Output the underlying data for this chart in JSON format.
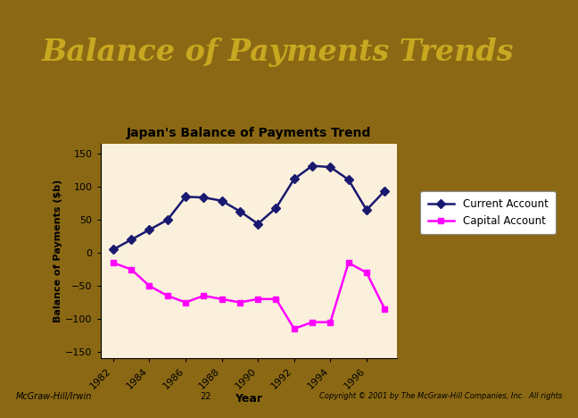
{
  "title": "Balance of Payments Trends",
  "chart_title": "Japan's Balance of Payments Trend",
  "xlabel": "Year",
  "ylabel": "Balance of Payments ($b)",
  "years": [
    1982,
    1983,
    1984,
    1985,
    1986,
    1987,
    1988,
    1989,
    1990,
    1991,
    1992,
    1993,
    1994,
    1995,
    1996,
    1997
  ],
  "current_account": [
    5,
    20,
    35,
    50,
    85,
    84,
    79,
    63,
    44,
    68,
    112,
    132,
    130,
    111,
    65,
    94
  ],
  "capital_account": [
    -15,
    -25,
    -50,
    -65,
    -75,
    -65,
    -70,
    -75,
    -70,
    -70,
    -115,
    -105,
    -105,
    -15,
    -30,
    -85
  ],
  "current_color": "#191970",
  "capital_color": "#FF00FF",
  "ylim": [
    -160,
    165
  ],
  "yticks": [
    -150,
    -100,
    -50,
    0,
    50,
    100,
    150
  ],
  "xticks": [
    1982,
    1984,
    1986,
    1988,
    1990,
    1992,
    1994,
    1996
  ],
  "chart_bg": "#FAF0DC",
  "header_bg": "#000000",
  "header_text_color": "#C8A820",
  "border_color": "#8B6914",
  "slide_bg": "#C0C0C0",
  "card_bg": "#FFFFFF",
  "legend_labels": [
    "Current Account",
    "Capital Account"
  ],
  "footer_left": "McGraw-Hill/Irwin",
  "footer_center": "22",
  "footer_right": "Copyright © 2001 by The McGraw-Hill Companies, Inc.  All rights"
}
